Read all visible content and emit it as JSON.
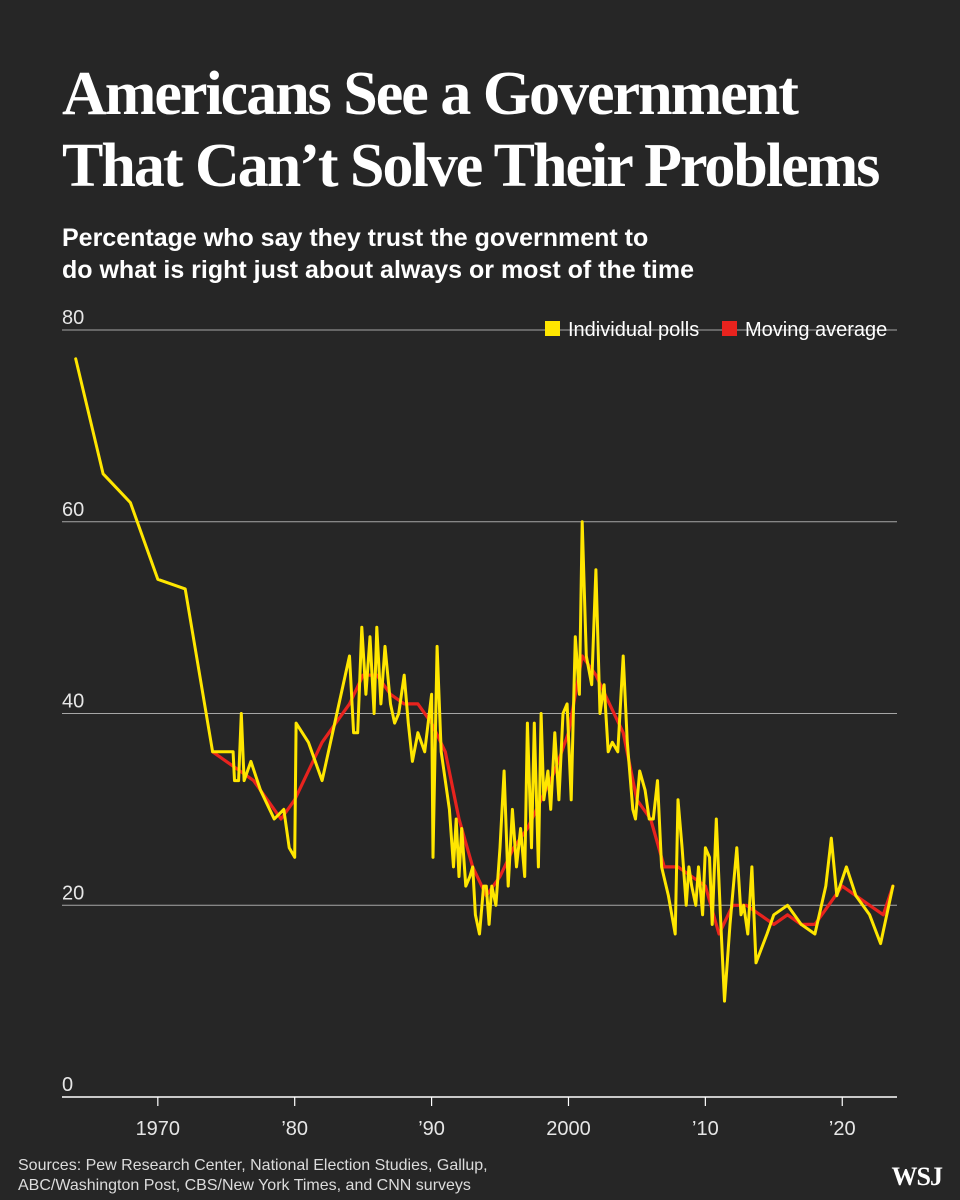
{
  "headline": {
    "line1": "Americans See a Government",
    "line2": "That Can’t Solve Their Problems"
  },
  "subhead": {
    "line1": "Percentage who say they trust the government to",
    "line2": "do what is right just about always or most of the time"
  },
  "source": {
    "line1": "Sources: Pew Research Center, National Election Studies, Gallup,",
    "line2": "ABC/Washington Post, CBS/New York Times, and CNN surveys"
  },
  "logo": "WSJ",
  "colors": {
    "background": "#262626",
    "polls": "#FFE600",
    "average": "#E8231E",
    "grid": "#bdbdbd"
  },
  "chart_data": {
    "type": "line",
    "title": "",
    "xlabel": "",
    "ylabel": "",
    "xlim": [
      1963,
      2024
    ],
    "ylim": [
      0,
      80
    ],
    "grid": true,
    "legend_position": "top-right",
    "y_ticks": [
      {
        "value": 80,
        "label": "80"
      },
      {
        "value": 60,
        "label": "60"
      },
      {
        "value": 40,
        "label": "40"
      },
      {
        "value": 20,
        "label": "20"
      },
      {
        "value": 0,
        "label": "0"
      }
    ],
    "x_ticks": [
      {
        "value": 1970,
        "label": "1970"
      },
      {
        "value": 1980,
        "label": "’80"
      },
      {
        "value": 1990,
        "label": "’90"
      },
      {
        "value": 2000,
        "label": "2000"
      },
      {
        "value": 2010,
        "label": "’10"
      },
      {
        "value": 2020,
        "label": "’20"
      }
    ],
    "series": [
      {
        "name": "Moving average",
        "color": "#E8231E",
        "points": [
          [
            1974,
            36
          ],
          [
            1975,
            35
          ],
          [
            1976,
            34
          ],
          [
            1977,
            33
          ],
          [
            1978,
            31
          ],
          [
            1979,
            29
          ],
          [
            1980,
            31
          ],
          [
            1981,
            34
          ],
          [
            1982,
            37
          ],
          [
            1983,
            39
          ],
          [
            1984,
            41
          ],
          [
            1985,
            44
          ],
          [
            1986,
            44
          ],
          [
            1987,
            42
          ],
          [
            1988,
            41
          ],
          [
            1989,
            41
          ],
          [
            1990,
            39
          ],
          [
            1991,
            36
          ],
          [
            1992,
            29
          ],
          [
            1993,
            24
          ],
          [
            1994,
            21
          ],
          [
            1995,
            23
          ],
          [
            1996,
            26
          ],
          [
            1997,
            28
          ],
          [
            1998,
            31
          ],
          [
            1999,
            34
          ],
          [
            2000,
            38
          ],
          [
            2001,
            46
          ],
          [
            2002,
            44
          ],
          [
            2003,
            41
          ],
          [
            2004,
            38
          ],
          [
            2005,
            31
          ],
          [
            2006,
            29
          ],
          [
            2007,
            24
          ],
          [
            2008,
            24
          ],
          [
            2009,
            23
          ],
          [
            2010,
            22
          ],
          [
            2011,
            17
          ],
          [
            2012,
            20
          ],
          [
            2013,
            20
          ],
          [
            2014,
            19
          ],
          [
            2015,
            18
          ],
          [
            2016,
            19
          ],
          [
            2017,
            18
          ],
          [
            2018,
            18
          ],
          [
            2019,
            20
          ],
          [
            2020,
            22
          ],
          [
            2021,
            21
          ],
          [
            2022,
            20
          ],
          [
            2023,
            19
          ],
          [
            2023.7,
            22
          ]
        ]
      },
      {
        "name": "Individual polls",
        "color": "#FFE600",
        "points": [
          [
            1964,
            77
          ],
          [
            1966,
            65
          ],
          [
            1968,
            62
          ],
          [
            1970,
            54
          ],
          [
            1972,
            53
          ],
          [
            1974,
            36
          ],
          [
            1975.5,
            36
          ],
          [
            1975.6,
            33
          ],
          [
            1975.9,
            33
          ],
          [
            1976.1,
            40
          ],
          [
            1976.3,
            33
          ],
          [
            1976.8,
            35
          ],
          [
            1977.5,
            32
          ],
          [
            1978.5,
            29
          ],
          [
            1979.2,
            30
          ],
          [
            1979.6,
            26
          ],
          [
            1980.0,
            25
          ],
          [
            1980.1,
            39
          ],
          [
            1981,
            37
          ],
          [
            1982,
            33
          ],
          [
            1984,
            46
          ],
          [
            1984.3,
            38
          ],
          [
            1984.6,
            38
          ],
          [
            1984.9,
            49
          ],
          [
            1985.2,
            42
          ],
          [
            1985.5,
            48
          ],
          [
            1985.8,
            40
          ],
          [
            1986.0,
            49
          ],
          [
            1986.3,
            41
          ],
          [
            1986.6,
            47
          ],
          [
            1987,
            41
          ],
          [
            1987.3,
            39
          ],
          [
            1987.6,
            40
          ],
          [
            1988,
            44
          ],
          [
            1988.3,
            39
          ],
          [
            1988.6,
            35
          ],
          [
            1989,
            38
          ],
          [
            1989.5,
            36
          ],
          [
            1990,
            42
          ],
          [
            1990.1,
            25
          ],
          [
            1990.4,
            47
          ],
          [
            1990.7,
            36
          ],
          [
            1991.3,
            30
          ],
          [
            1991.6,
            24
          ],
          [
            1991.8,
            29
          ],
          [
            1992.0,
            23
          ],
          [
            1992.2,
            28
          ],
          [
            1992.5,
            22
          ],
          [
            1992.8,
            23
          ],
          [
            1993.0,
            24
          ],
          [
            1993.2,
            19
          ],
          [
            1993.5,
            17
          ],
          [
            1993.8,
            22
          ],
          [
            1994.0,
            22
          ],
          [
            1994.2,
            18
          ],
          [
            1994.4,
            22
          ],
          [
            1994.7,
            20
          ],
          [
            1995.0,
            26
          ],
          [
            1995.3,
            34
          ],
          [
            1995.6,
            22
          ],
          [
            1995.9,
            30
          ],
          [
            1996.2,
            24
          ],
          [
            1996.5,
            28
          ],
          [
            1996.8,
            23
          ],
          [
            1997.0,
            39
          ],
          [
            1997.3,
            26
          ],
          [
            1997.5,
            39
          ],
          [
            1997.8,
            24
          ],
          [
            1998.0,
            40
          ],
          [
            1998.2,
            31
          ],
          [
            1998.5,
            34
          ],
          [
            1998.7,
            30
          ],
          [
            1999.0,
            38
          ],
          [
            1999.3,
            31
          ],
          [
            1999.6,
            40
          ],
          [
            1999.9,
            41
          ],
          [
            2000.2,
            31
          ],
          [
            2000.5,
            48
          ],
          [
            2000.8,
            42
          ],
          [
            2001.0,
            60
          ],
          [
            2001.3,
            46
          ],
          [
            2001.7,
            43
          ],
          [
            2002.0,
            55
          ],
          [
            2002.3,
            40
          ],
          [
            2002.6,
            43
          ],
          [
            2002.9,
            36
          ],
          [
            2003.2,
            37
          ],
          [
            2003.6,
            36
          ],
          [
            2004.0,
            46
          ],
          [
            2004.3,
            37
          ],
          [
            2004.7,
            30
          ],
          [
            2004.9,
            29
          ],
          [
            2005.2,
            34
          ],
          [
            2005.6,
            32
          ],
          [
            2005.9,
            29
          ],
          [
            2006.2,
            29
          ],
          [
            2006.5,
            33
          ],
          [
            2006.8,
            24
          ],
          [
            2007.3,
            21
          ],
          [
            2007.8,
            17
          ],
          [
            2008.0,
            31
          ],
          [
            2008.3,
            26
          ],
          [
            2008.6,
            20
          ],
          [
            2008.8,
            24
          ],
          [
            2009.0,
            22
          ],
          [
            2009.3,
            20
          ],
          [
            2009.5,
            24
          ],
          [
            2009.8,
            19
          ],
          [
            2010.0,
            26
          ],
          [
            2010.3,
            25
          ],
          [
            2010.5,
            18
          ],
          [
            2010.8,
            29
          ],
          [
            2011.1,
            19
          ],
          [
            2011.4,
            10
          ],
          [
            2011.8,
            18
          ],
          [
            2012.3,
            26
          ],
          [
            2012.6,
            19
          ],
          [
            2012.8,
            20
          ],
          [
            2013.1,
            17
          ],
          [
            2013.4,
            24
          ],
          [
            2013.7,
            14
          ],
          [
            2014.5,
            17
          ],
          [
            2015.0,
            19
          ],
          [
            2016.0,
            20
          ],
          [
            2017.0,
            18
          ],
          [
            2018.0,
            17
          ],
          [
            2018.8,
            22
          ],
          [
            2019.2,
            27
          ],
          [
            2019.6,
            21
          ],
          [
            2020.3,
            24
          ],
          [
            2021.0,
            21
          ],
          [
            2022.0,
            19
          ],
          [
            2022.8,
            16
          ],
          [
            2023.7,
            22
          ]
        ]
      }
    ]
  }
}
